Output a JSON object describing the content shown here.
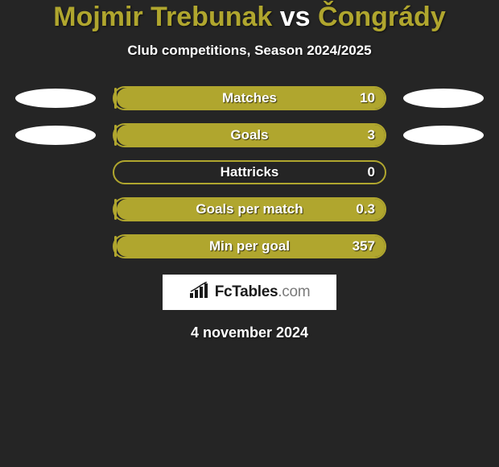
{
  "title": {
    "player1": "Mojmir Trebunak",
    "vs": "vs",
    "player2": "Čongrády",
    "player1_color": "#b0a62e",
    "player2_color": "#b0a62e"
  },
  "subtitle": "Club competitions, Season 2024/2025",
  "background_color": "#252525",
  "ellipse_left_color": "#ffffff",
  "ellipse_right_color": "#ffffff",
  "bar_border_color": "#b0a62e",
  "bar_fill_left_color": "#b0a62e",
  "bar_fill_right_color": "#b0a62e",
  "stats": [
    {
      "label": "Matches",
      "left_value": "",
      "right_value": "10",
      "left_fill_pct": 1,
      "right_fill_pct": 99,
      "show_left_ellipse": true,
      "show_right_ellipse": true
    },
    {
      "label": "Goals",
      "left_value": "",
      "right_value": "3",
      "left_fill_pct": 1,
      "right_fill_pct": 99,
      "show_left_ellipse": true,
      "show_right_ellipse": true
    },
    {
      "label": "Hattricks",
      "left_value": "",
      "right_value": "0",
      "left_fill_pct": 0,
      "right_fill_pct": 0,
      "show_left_ellipse": false,
      "show_right_ellipse": false
    },
    {
      "label": "Goals per match",
      "left_value": "",
      "right_value": "0.3",
      "left_fill_pct": 1,
      "right_fill_pct": 99,
      "show_left_ellipse": false,
      "show_right_ellipse": false
    },
    {
      "label": "Min per goal",
      "left_value": "",
      "right_value": "357",
      "left_fill_pct": 1,
      "right_fill_pct": 99,
      "show_left_ellipse": false,
      "show_right_ellipse": false
    }
  ],
  "logo": {
    "brand1": "FcTables",
    "brand2": ".com"
  },
  "date": "4 november 2024"
}
